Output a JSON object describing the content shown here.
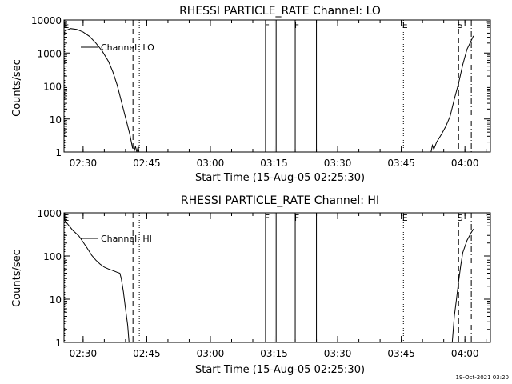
{
  "footer": {
    "timestamp": "19-Oct-2021 03:20"
  },
  "chart_data": [
    {
      "type": "line",
      "title": "RHESSI PARTICLE_RATE Channel: LO",
      "xlabel": "Start Time (15-Aug-05 02:25:30)",
      "ylabel": "Counts/sec",
      "yscale": "log",
      "xlim": [
        "02:25:30",
        "04:06:00"
      ],
      "ylim": [
        1,
        10000
      ],
      "xticks": [
        "02:30",
        "02:45",
        "03:00",
        "03:15",
        "03:30",
        "03:45",
        "04:00"
      ],
      "yticks": [
        "1",
        "10",
        "100",
        "1000",
        "10000"
      ],
      "legend": {
        "label": "Channel: LO",
        "position": "top-left"
      },
      "markers": [
        {
          "label": "E",
          "time": "02:25:40",
          "style": "dotted"
        },
        {
          "label": "",
          "time": "02:41:45",
          "style": "dashed"
        },
        {
          "label": "",
          "time": "02:43:15",
          "style": "dotted"
        },
        {
          "label": "F",
          "time": "03:13:00",
          "style": "solid"
        },
        {
          "label": "",
          "time": "03:15:30",
          "style": "solid"
        },
        {
          "label": "F",
          "time": "03:20:00",
          "style": "solid"
        },
        {
          "label": "",
          "time": "03:25:00",
          "style": "solid"
        },
        {
          "label": "E",
          "time": "03:45:30",
          "style": "dotted"
        },
        {
          "label": "S",
          "time": "03:58:30",
          "style": "dashed"
        },
        {
          "label": "",
          "time": "04:01:30",
          "style": "dashdot"
        }
      ],
      "series": [
        {
          "name": "",
          "segments": [
            [
              [
                "02:25:30",
                4500
              ],
              [
                "02:27:00",
                5500
              ],
              [
                "02:28:30",
                5200
              ],
              [
                "02:30:00",
                4300
              ],
              [
                "02:31:30",
                3200
              ],
              [
                "02:33:00",
                2000
              ],
              [
                "02:34:30",
                1150
              ],
              [
                "02:36:00",
                550
              ],
              [
                "02:37:00",
                270
              ],
              [
                "02:38:00",
                110
              ],
              [
                "02:39:00",
                35
              ],
              [
                "02:40:00",
                11
              ],
              [
                "02:41:00",
                3.5
              ],
              [
                "02:41:40",
                1.3
              ]
            ],
            [
              [
                "02:42:00",
                1.0
              ],
              [
                "02:42:20",
                1.5
              ],
              [
                "02:42:40",
                1.0
              ],
              [
                "02:43:00",
                1.5
              ],
              [
                "02:43:10",
                1.0
              ]
            ],
            [
              [
                "03:52:00",
                1.0
              ],
              [
                "03:52:20",
                1.6
              ],
              [
                "03:52:40",
                1.2
              ],
              [
                "03:53:20",
                2.0
              ],
              [
                "03:54:30",
                3.5
              ],
              [
                "03:55:30",
                6
              ],
              [
                "03:56:30",
                12
              ],
              [
                "03:57:30",
                40
              ],
              [
                "03:58:30",
                120
              ],
              [
                "03:59:30",
                450
              ],
              [
                "04:00:30",
                1300
              ],
              [
                "04:01:30",
                2400
              ],
              [
                "04:02:00",
                3300
              ]
            ]
          ]
        }
      ]
    },
    {
      "type": "line",
      "title": "RHESSI PARTICLE_RATE Channel: HI",
      "xlabel": "Start Time (15-Aug-05 02:25:30)",
      "ylabel": "Counts/sec",
      "yscale": "log",
      "xlim": [
        "02:25:30",
        "04:06:00"
      ],
      "ylim": [
        1,
        1000
      ],
      "xticks": [
        "02:30",
        "02:45",
        "03:00",
        "03:15",
        "03:30",
        "03:45",
        "04:00"
      ],
      "yticks": [
        "1",
        "10",
        "100",
        "1000"
      ],
      "legend": {
        "label": "Channel: HI",
        "position": "top-left"
      },
      "markers": [
        {
          "label": "E",
          "time": "02:25:40",
          "style": "dotted"
        },
        {
          "label": "",
          "time": "02:41:45",
          "style": "dashed"
        },
        {
          "label": "",
          "time": "02:43:15",
          "style": "dotted"
        },
        {
          "label": "F",
          "time": "03:13:00",
          "style": "solid"
        },
        {
          "label": "",
          "time": "03:15:30",
          "style": "solid"
        },
        {
          "label": "F",
          "time": "03:20:00",
          "style": "solid"
        },
        {
          "label": "",
          "time": "03:25:00",
          "style": "solid"
        },
        {
          "label": "E",
          "time": "03:45:30",
          "style": "dotted"
        },
        {
          "label": "S",
          "time": "03:58:30",
          "style": "dashed"
        },
        {
          "label": "",
          "time": "04:01:30",
          "style": "dashdot"
        }
      ],
      "series": [
        {
          "name": "",
          "segments": [
            [
              [
                "02:25:30",
                700
              ],
              [
                "02:26:30",
                530
              ],
              [
                "02:27:30",
                400
              ],
              [
                "02:29:00",
                290
              ],
              [
                "02:30:00",
                210
              ],
              [
                "02:31:00",
                150
              ],
              [
                "02:32:00",
                105
              ],
              [
                "02:33:00",
                80
              ],
              [
                "02:34:00",
                65
              ],
              [
                "02:35:00",
                55
              ],
              [
                "02:36:00",
                50
              ],
              [
                "02:37:00",
                46
              ],
              [
                "02:38:00",
                42
              ],
              [
                "02:38:40",
                40
              ],
              [
                "02:39:00",
                30
              ],
              [
                "02:39:30",
                15
              ],
              [
                "02:40:00",
                6
              ],
              [
                "02:40:30",
                2.5
              ],
              [
                "02:40:50",
                1.0
              ]
            ],
            [
              [
                "03:57:00",
                1.0
              ],
              [
                "03:57:30",
                4
              ],
              [
                "03:58:00",
                10
              ],
              [
                "03:58:30",
                25
              ],
              [
                "03:59:00",
                60
              ],
              [
                "03:59:30",
                120
              ],
              [
                "04:00:30",
                230
              ],
              [
                "04:01:30",
                350
              ],
              [
                "04:02:00",
                420
              ]
            ]
          ]
        }
      ]
    }
  ]
}
